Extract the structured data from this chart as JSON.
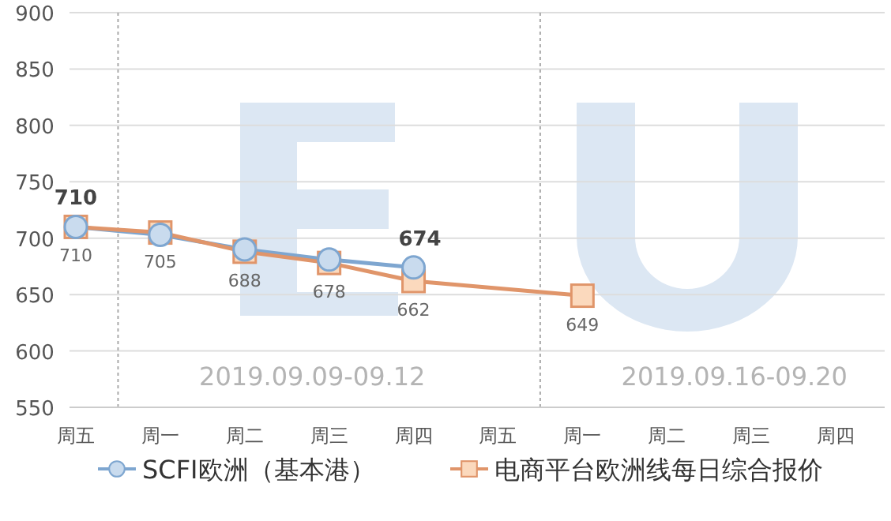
{
  "chart_data": {
    "type": "line",
    "categories": [
      "周五",
      "周一",
      "周二",
      "周三",
      "周四",
      "周五",
      "周一",
      "周二",
      "周三",
      "周四"
    ],
    "series": [
      {
        "name": "SCFI欧洲（基本港）",
        "color": "#7ea6d0",
        "marker": "circle",
        "values": [
          710,
          703,
          690,
          681,
          674,
          null,
          null,
          null,
          null,
          null
        ],
        "value_labels": [
          "710",
          null,
          null,
          null,
          "674",
          null,
          null,
          null,
          null,
          null
        ]
      },
      {
        "name": "电商平台欧洲线每日综合报价",
        "color": "#e0956a",
        "marker": "square",
        "values": [
          710,
          705,
          688,
          678,
          662,
          null,
          649,
          null,
          null,
          null
        ],
        "value_labels": [
          "710",
          "705",
          "688",
          "678",
          "662",
          null,
          "649",
          null,
          null,
          null
        ]
      }
    ],
    "ylim": [
      550,
      900
    ],
    "yticks": [
      550,
      600,
      650,
      700,
      750,
      800,
      850,
      900
    ],
    "grid": "y",
    "legend": "bottom",
    "annotations": [
      "2019.09.09-09.12",
      "2019.09.16-09.20"
    ]
  }
}
